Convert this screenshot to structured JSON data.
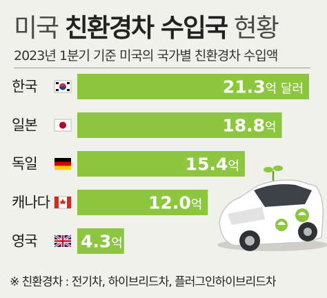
{
  "header": {
    "title_prefix": "미국",
    "title_main": "친환경차 수입국",
    "title_suffix": "현황",
    "subtitle": "2023년 1분기 기준 미국의 국가별 친환경차 수입액"
  },
  "colors": {
    "bar": "#8dc63f",
    "background": "#f1f1ec",
    "label_text": "#ffffff",
    "country_text": "#1a1a1a"
  },
  "chart_data": {
    "type": "bar",
    "orientation": "horizontal",
    "title": "",
    "xlabel": "",
    "ylabel": "",
    "categories": [
      "한국",
      "일본",
      "독일",
      "캐나다",
      "영국"
    ],
    "flags": [
      "korea-flag-icon",
      "japan-flag-icon",
      "germany-flag-icon",
      "canada-flag-icon",
      "uk-flag-icon"
    ],
    "values": [
      21.3,
      18.8,
      15.4,
      12.0,
      4.3
    ],
    "value_labels": [
      "21.3",
      "18.8",
      "15.4",
      "12.0",
      "4.3"
    ],
    "unit_first": "억 달러",
    "unit": "억",
    "xlim": [
      0,
      21.3
    ],
    "grid": false,
    "legend": "none"
  },
  "footnote": "※ 친환경차 : 전기차, 하이브리드차, 플러그인하이브리드차"
}
